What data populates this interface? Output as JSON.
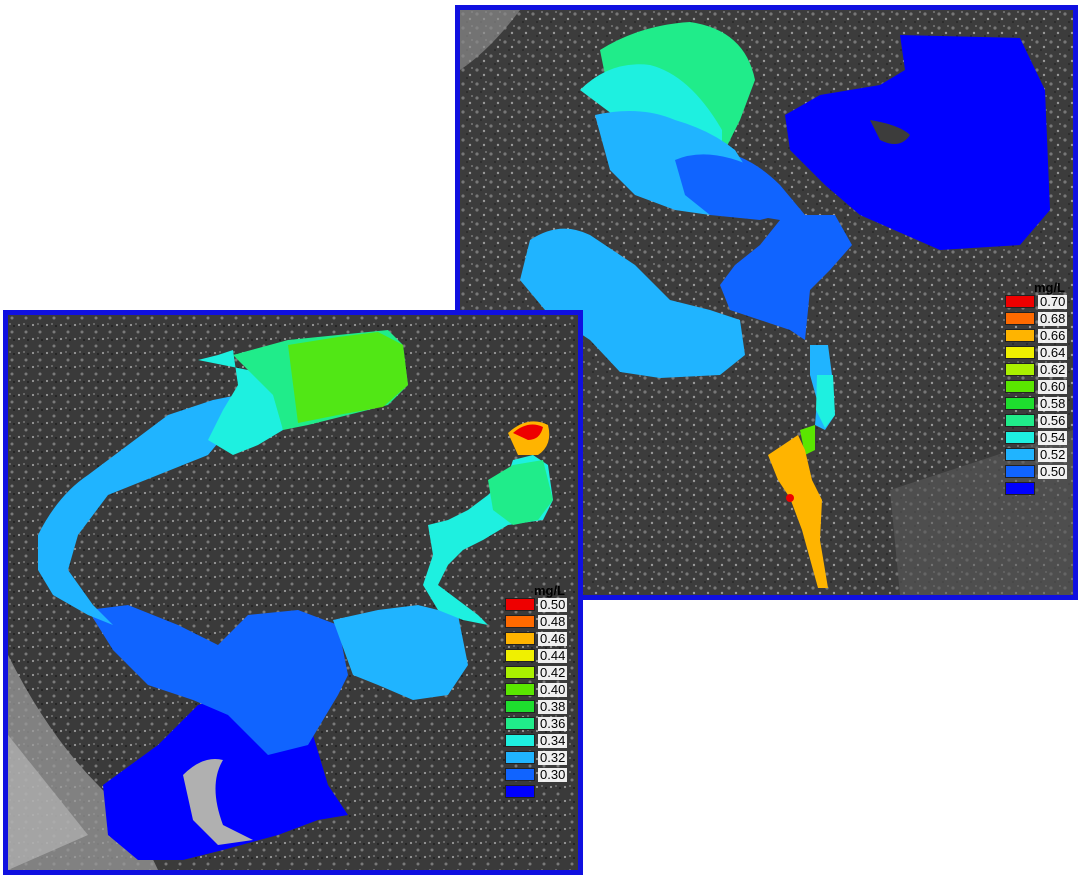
{
  "maps": [
    {
      "id": "right",
      "legend": {
        "unit": "mg/L",
        "levels": [
          {
            "label": "0.70",
            "color": "#ee0000"
          },
          {
            "label": "0.68",
            "color": "#ff6a00"
          },
          {
            "label": "0.66",
            "color": "#ffb400"
          },
          {
            "label": "0.64",
            "color": "#f0f000"
          },
          {
            "label": "0.62",
            "color": "#aaf000"
          },
          {
            "label": "0.60",
            "color": "#5ae600"
          },
          {
            "label": "0.58",
            "color": "#1ede2e"
          },
          {
            "label": "0.56",
            "color": "#20ec8a"
          },
          {
            "label": "0.54",
            "color": "#1ef0e0"
          },
          {
            "label": "0.52",
            "color": "#20b4ff"
          },
          {
            "label": "0.50",
            "color": "#1064ff"
          },
          {
            "label": "",
            "color": "#0000ff"
          }
        ]
      }
    },
    {
      "id": "left",
      "legend": {
        "unit": "mg/L",
        "levels": [
          {
            "label": "0.50",
            "color": "#ee0000"
          },
          {
            "label": "0.48",
            "color": "#ff6a00"
          },
          {
            "label": "0.46",
            "color": "#ffb400"
          },
          {
            "label": "0.44",
            "color": "#f0f000"
          },
          {
            "label": "0.42",
            "color": "#aaf000"
          },
          {
            "label": "0.40",
            "color": "#5ae600"
          },
          {
            "label": "0.38",
            "color": "#1ede2e"
          },
          {
            "label": "0.36",
            "color": "#20ec8a"
          },
          {
            "label": "0.34",
            "color": "#1ef0e0"
          },
          {
            "label": "0.32",
            "color": "#20b4ff"
          },
          {
            "label": "0.30",
            "color": "#1064ff"
          },
          {
            "label": "",
            "color": "#0000ff"
          }
        ]
      }
    }
  ]
}
